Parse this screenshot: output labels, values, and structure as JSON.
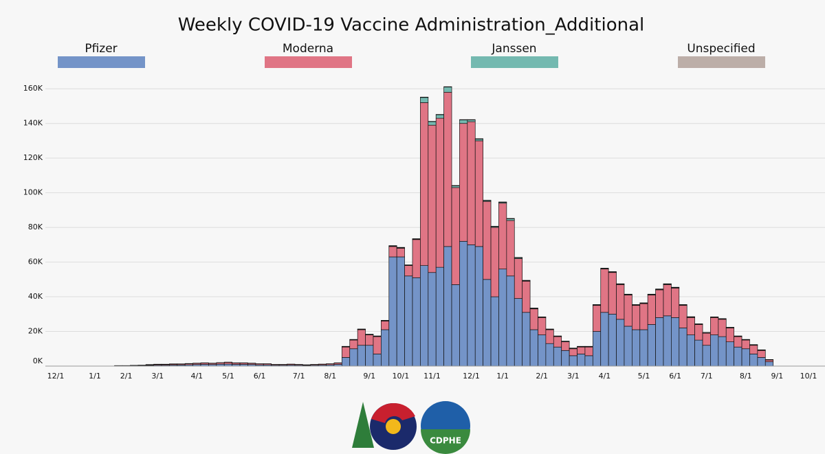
{
  "chart_data": {
    "type": "stacked_bar",
    "title": "Weekly COVID-19 Vaccine Administration_Additional",
    "categories": [
      "12/1",
      null,
      null,
      null,
      null,
      "1/1",
      null,
      null,
      null,
      "2/1",
      null,
      null,
      null,
      "3/1",
      null,
      null,
      null,
      null,
      "4/1",
      null,
      null,
      null,
      "5/1",
      null,
      null,
      null,
      "6/1",
      null,
      null,
      null,
      null,
      "7/1",
      null,
      null,
      null,
      "8/1",
      null,
      null,
      null,
      null,
      "9/1",
      null,
      null,
      null,
      "10/1",
      null,
      null,
      null,
      "11/1",
      null,
      null,
      null,
      null,
      "12/1",
      null,
      null,
      null,
      "1/1",
      null,
      null,
      null,
      null,
      "2/1",
      null,
      null,
      null,
      "3/1",
      null,
      null,
      null,
      "4/1",
      null,
      null,
      null,
      null,
      "5/1",
      null,
      null,
      null,
      "6/1",
      null,
      null,
      null,
      "7/1",
      null,
      null,
      null,
      null,
      "8/1",
      null,
      null,
      null,
      "9/1",
      null,
      null,
      null,
      "10/1"
    ],
    "series": [
      {
        "name": "Pfizer",
        "color": "#7494c8",
        "values": [
          0,
          0,
          0,
          0,
          0,
          0,
          0,
          0,
          150,
          150,
          200,
          250,
          400,
          500,
          500,
          600,
          650,
          750,
          900,
          1000,
          900,
          1100,
          1200,
          1000,
          1000,
          900,
          700,
          700,
          500,
          500,
          600,
          500,
          400,
          500,
          600,
          700,
          1000,
          5000,
          10000,
          12000,
          12000,
          7000,
          21000,
          63000,
          63000,
          52000,
          51000,
          58000,
          54000,
          57000,
          69000,
          47000,
          72000,
          70000,
          69000,
          50000,
          40000,
          56000,
          52000,
          39000,
          31000,
          21000,
          18000,
          13000,
          11000,
          9000,
          6000,
          7000,
          6000,
          20000,
          31000,
          30000,
          27000,
          23000,
          21000,
          21000,
          24000,
          28000,
          29000,
          28000,
          22000,
          18000,
          15000,
          12000,
          18000,
          17000,
          14000,
          11000,
          10000,
          7000,
          5000,
          2500,
          0,
          0,
          0,
          0,
          0
        ]
      },
      {
        "name": "Moderna",
        "color": "#e07585",
        "values": [
          0,
          0,
          0,
          0,
          0,
          0,
          0,
          0,
          100,
          100,
          150,
          200,
          300,
          400,
          400,
          500,
          500,
          600,
          700,
          800,
          700,
          800,
          1000,
          800,
          800,
          700,
          600,
          600,
          400,
          400,
          500,
          400,
          300,
          400,
          500,
          600,
          800,
          6000,
          5000,
          9000,
          6000,
          10000,
          5000,
          6000,
          5000,
          6000,
          22000,
          94000,
          85000,
          86000,
          89000,
          56000,
          68000,
          71000,
          61000,
          45000,
          40000,
          38000,
          32000,
          23000,
          18000,
          12000,
          10000,
          8000,
          6000,
          5000,
          4000,
          4000,
          5000,
          15000,
          25000,
          24000,
          20000,
          18000,
          14000,
          15000,
          17000,
          16000,
          18000,
          17000,
          13000,
          10000,
          9000,
          7000,
          10000,
          10000,
          8000,
          6000,
          5000,
          5000,
          4000,
          1000,
          0,
          0,
          0,
          0,
          0
        ]
      },
      {
        "name": "Janssen",
        "color": "#74b9b0",
        "values": [
          0,
          0,
          0,
          0,
          0,
          0,
          0,
          0,
          50,
          50,
          100,
          100,
          200,
          200,
          200,
          200,
          150,
          150,
          100,
          100,
          100,
          100,
          100,
          100,
          100,
          100,
          50,
          50,
          50,
          50,
          50,
          50,
          50,
          50,
          50,
          50,
          100,
          200,
          200,
          200,
          200,
          200,
          200,
          300,
          300,
          200,
          300,
          3000,
          2000,
          2000,
          3000,
          1000,
          2000,
          1000,
          1000,
          500,
          500,
          500,
          1000,
          500,
          300,
          300,
          200,
          200,
          200,
          200,
          200,
          200,
          200,
          300,
          300,
          300,
          300,
          300,
          300,
          300,
          300,
          300,
          300,
          300,
          300,
          300,
          200,
          200,
          200,
          200,
          200,
          200,
          200,
          200,
          200,
          100,
          0,
          0,
          0,
          0,
          0
        ]
      },
      {
        "name": "Unspecified",
        "color": "#bcaea8",
        "values": [
          0,
          0,
          0,
          0,
          0,
          0,
          0,
          0,
          0,
          0,
          0,
          0,
          0,
          0,
          0,
          0,
          0,
          0,
          0,
          0,
          0,
          0,
          0,
          0,
          0,
          0,
          0,
          0,
          0,
          0,
          0,
          0,
          0,
          0,
          0,
          0,
          0,
          200,
          200,
          200,
          200,
          200,
          200,
          200,
          200,
          200,
          200,
          200,
          200,
          200,
          200,
          200,
          200,
          200,
          200,
          200,
          200,
          200,
          200,
          200,
          200,
          200,
          200,
          200,
          200,
          200,
          200,
          200,
          200,
          200,
          200,
          200,
          200,
          200,
          200,
          200,
          200,
          200,
          200,
          200,
          200,
          200,
          200,
          200,
          200,
          200,
          200,
          200,
          200,
          200,
          200,
          200,
          0,
          0,
          0,
          0,
          0
        ]
      }
    ],
    "ylim": [
      0,
      170000
    ],
    "yticks": [
      {
        "value": 0,
        "label": "0K"
      },
      {
        "value": 20000,
        "label": "20K"
      },
      {
        "value": 40000,
        "label": "40K"
      },
      {
        "value": 60000,
        "label": "60K"
      },
      {
        "value": 80000,
        "label": "80K"
      },
      {
        "value": 100000,
        "label": "100K"
      },
      {
        "value": 120000,
        "label": "120K"
      },
      {
        "value": 140000,
        "label": "140K"
      },
      {
        "value": 160000,
        "label": "160K"
      }
    ],
    "grid": true
  },
  "logo": {
    "text": "CDPHE"
  }
}
